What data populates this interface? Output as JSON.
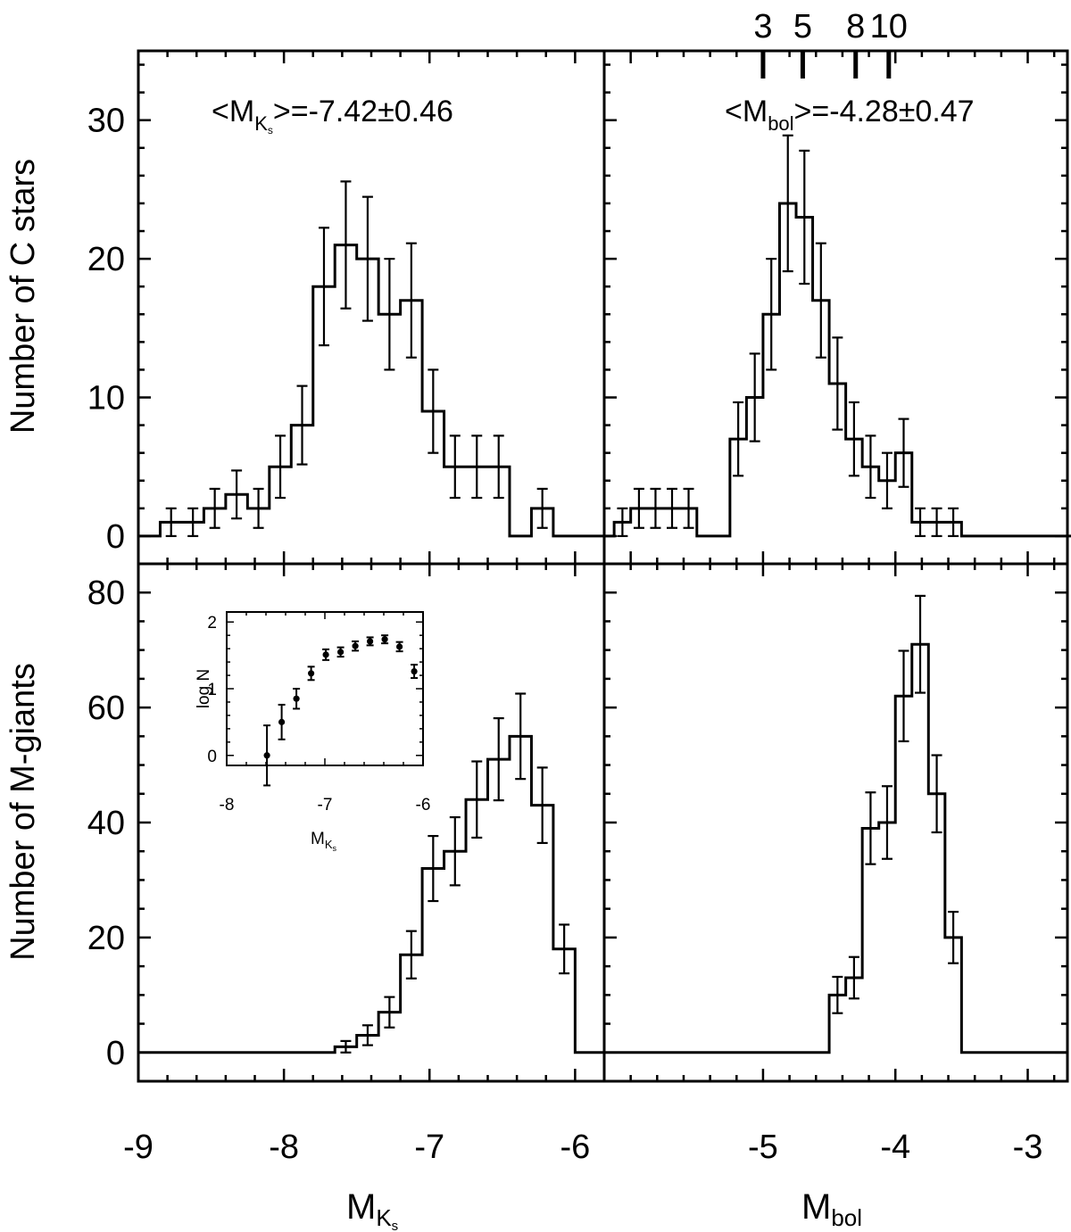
{
  "chart_data": [
    {
      "type": "histogram",
      "panel": "top-left",
      "ylabel": "Number of C stars",
      "annotation": {
        "prefix": "<M",
        "sub": "K",
        "subsub": "s",
        "suffix": ">=-7.42±0.46"
      },
      "xlim": [
        -9,
        -5.8
      ],
      "ylim": [
        -2,
        35
      ],
      "bin_width": 0.15,
      "bin_left": [
        -8.85,
        -8.7,
        -8.55,
        -8.4,
        -8.25,
        -8.1,
        -7.95,
        -7.8,
        -7.65,
        -7.5,
        -7.35,
        -7.2,
        -7.05,
        -6.9,
        -6.75,
        -6.6,
        -6.45,
        -6.3,
        -6.15,
        -6.0
      ],
      "values": [
        1,
        1,
        2,
        3,
        2,
        5,
        8,
        18,
        21,
        20,
        16,
        17,
        9,
        5,
        5,
        5,
        0,
        2,
        0,
        0
      ],
      "errors": [
        1,
        1,
        1.41,
        1.73,
        1.41,
        2.24,
        2.83,
        4.24,
        4.58,
        4.47,
        4.0,
        4.12,
        3.0,
        2.24,
        2.24,
        2.24,
        0,
        1.41,
        0,
        0
      ],
      "flat_start": -9.0
    },
    {
      "type": "histogram",
      "panel": "top-right",
      "annotation": {
        "prefix": "<M",
        "sub": "bol",
        "suffix": ">=-4.28±0.47"
      },
      "xlim": [
        -6.2,
        -2.7
      ],
      "ylim": [
        -2,
        35
      ],
      "bin_width": 0.125,
      "bin_left": [
        -6.125,
        -6.0,
        -5.875,
        -5.75,
        -5.625,
        -5.5,
        -5.375,
        -5.25,
        -5.125,
        -5.0,
        -4.875,
        -4.75,
        -4.625,
        -4.5,
        -4.375,
        -4.25,
        -4.125,
        -4.0,
        -3.875,
        -3.75,
        -3.625,
        -3.5,
        -3.375,
        -3.25,
        -3.125,
        -3.0,
        -2.875,
        -2.75
      ],
      "values": [
        1,
        2,
        2,
        2,
        2,
        0,
        0,
        7,
        10,
        16,
        24,
        23,
        17,
        11,
        7,
        5,
        4,
        6,
        1,
        1,
        1,
        0,
        0,
        0,
        0,
        0,
        0,
        0
      ],
      "errors": [
        1,
        1.41,
        1.41,
        1.41,
        1.41,
        0,
        0,
        2.65,
        3.16,
        4.0,
        4.9,
        4.8,
        4.12,
        3.32,
        2.65,
        2.24,
        2.0,
        2.45,
        1,
        1,
        1,
        0,
        0,
        0,
        0,
        0,
        0,
        0
      ],
      "flat_start": -6.2,
      "mass_ticks": [
        {
          "label": "3",
          "x": -5.0
        },
        {
          "label": "5",
          "x": -4.7
        },
        {
          "label": "8",
          "x": -4.3
        },
        {
          "label": "10",
          "x": -4.05
        }
      ]
    },
    {
      "type": "histogram",
      "panel": "bottom-left",
      "ylabel": "Number of M-giants",
      "xlabel": {
        "main": "M",
        "sub": "K",
        "subsub": "s"
      },
      "xlim": [
        -9,
        -5.8
      ],
      "ylim": [
        -5,
        85
      ],
      "x_ticks": [
        -9,
        -8,
        -7,
        -6
      ],
      "bin_width": 0.15,
      "bin_left": [
        -7.65,
        -7.5,
        -7.35,
        -7.2,
        -7.05,
        -6.9,
        -6.75,
        -6.6,
        -6.45,
        -6.3,
        -6.15,
        -6.0
      ],
      "values": [
        1,
        3,
        7,
        17,
        32,
        35,
        44,
        51,
        55,
        43,
        18,
        0
      ],
      "errors": [
        1,
        1.73,
        2.65,
        4.12,
        5.66,
        5.92,
        6.63,
        7.14,
        7.42,
        6.56,
        4.24,
        0
      ],
      "flat_start": -9.0,
      "inset": {
        "type": "scatter",
        "xlabel": {
          "main": "M",
          "sub": "K",
          "subsub": "s"
        },
        "ylabel": "log N",
        "xlim": [
          -8,
          -6
        ],
        "ylim": [
          -0.15,
          2.15
        ],
        "x_ticks": [
          -8,
          -7,
          -6
        ],
        "y_ticks": [
          0,
          1,
          2
        ],
        "x": [
          -7.59,
          -7.44,
          -7.29,
          -7.14,
          -6.99,
          -6.84,
          -6.69,
          -6.54,
          -6.39,
          -6.24,
          -6.09
        ],
        "y": [
          0.0,
          0.5,
          0.85,
          1.23,
          1.51,
          1.55,
          1.64,
          1.71,
          1.74,
          1.63,
          1.26
        ],
        "yerr": [
          0.45,
          0.26,
          0.15,
          0.1,
          0.08,
          0.07,
          0.07,
          0.06,
          0.06,
          0.07,
          0.1
        ]
      }
    },
    {
      "type": "histogram",
      "panel": "bottom-right",
      "xlabel": {
        "main": "M",
        "sub": "bol"
      },
      "xlim": [
        -6.2,
        -2.7
      ],
      "ylim": [
        -5,
        85
      ],
      "x_ticks": [
        -5,
        -4,
        -3
      ],
      "bin_width": 0.125,
      "bin_left": [
        -4.5,
        -4.375,
        -4.25,
        -4.125,
        -4.0,
        -3.875,
        -3.75,
        -3.625,
        -3.5,
        -3.375
      ],
      "values": [
        10,
        13,
        39,
        40,
        62,
        71,
        45,
        20,
        0,
        0
      ],
      "errors": [
        3.16,
        3.61,
        6.24,
        6.32,
        7.87,
        8.43,
        6.71,
        4.47,
        0,
        0
      ],
      "flat_start": -6.2
    }
  ]
}
